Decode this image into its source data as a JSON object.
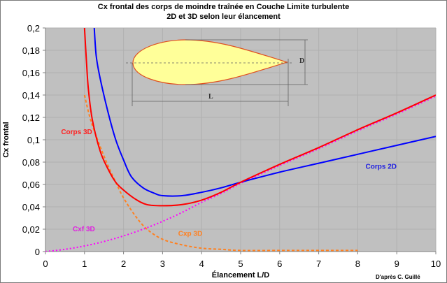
{
  "chart_data": {
    "type": "line",
    "title": "Cx frontal des corps de moindre traînée en Couche Limite turbulente",
    "subtitle": "2D et 3D selon leur élancement",
    "xlabel": "Élancement L/D",
    "ylabel": "Cx frontal",
    "xlim": [
      0,
      10
    ],
    "ylim": [
      0,
      0.2
    ],
    "x_ticks": [
      "0",
      "1",
      "2",
      "3",
      "4",
      "5",
      "6",
      "7",
      "8",
      "9",
      "10"
    ],
    "y_ticks": [
      "0",
      "0,02",
      "0,04",
      "0,06",
      "0,08",
      "0,1",
      "0,12",
      "0,14",
      "0,16",
      "0,18",
      "0,2"
    ],
    "grid": true,
    "plot_background": "#c0c0c0",
    "credit": "D'après C. Guillé",
    "inset_diagram": {
      "shape": "teardrop body profile",
      "length_label": "L",
      "diameter_label": "D",
      "fill": "#ffff99",
      "outline": "#e05020"
    },
    "series": [
      {
        "name": "Corps 3D",
        "color": "#ff0000",
        "style": "solid",
        "x": [
          1.0,
          1.05,
          1.1,
          1.2,
          1.4,
          1.6,
          1.8,
          2.0,
          2.3,
          2.6,
          3.0,
          3.5,
          4.0,
          4.5,
          5.0,
          6.0,
          7.0,
          8.0,
          9.0,
          10.0
        ],
        "y": [
          0.2,
          0.17,
          0.145,
          0.118,
          0.09,
          0.074,
          0.062,
          0.055,
          0.047,
          0.042,
          0.041,
          0.042,
          0.046,
          0.053,
          0.062,
          0.078,
          0.093,
          0.109,
          0.124,
          0.14
        ]
      },
      {
        "name": "Corps 2D",
        "color": "#0000ff",
        "style": "solid",
        "x": [
          1.25,
          1.3,
          1.4,
          1.6,
          1.8,
          2.0,
          2.2,
          2.5,
          2.8,
          3.0,
          3.5,
          4.0,
          4.5,
          5.0,
          6.0,
          7.0,
          8.0,
          9.0,
          10.0
        ],
        "y": [
          0.2,
          0.175,
          0.155,
          0.125,
          0.1,
          0.082,
          0.067,
          0.057,
          0.052,
          0.05,
          0.05,
          0.053,
          0.057,
          0.062,
          0.071,
          0.079,
          0.087,
          0.095,
          0.103
        ]
      },
      {
        "name": "Cxf 3D",
        "color": "#ff00ff",
        "style": "dotted",
        "x": [
          0,
          0.5,
          1.0,
          1.5,
          2.0,
          2.5,
          3.0,
          3.5,
          4.0,
          4.5,
          5.0,
          6.0,
          7.0,
          8.0,
          9.0,
          10.0
        ],
        "y": [
          0.0,
          0.002,
          0.005,
          0.009,
          0.014,
          0.02,
          0.027,
          0.035,
          0.044,
          0.052,
          0.061,
          0.077,
          0.092,
          0.108,
          0.123,
          0.139
        ]
      },
      {
        "name": "Cxp 3D",
        "color": "#ff8020",
        "style": "dashed",
        "x": [
          1.0,
          1.1,
          1.2,
          1.4,
          1.6,
          1.8,
          2.0,
          2.3,
          2.6,
          3.0,
          3.5,
          4.0,
          4.5,
          5.0,
          6.0,
          7.0,
          8.0
        ],
        "y": [
          0.14,
          0.125,
          0.113,
          0.094,
          0.077,
          0.062,
          0.048,
          0.032,
          0.02,
          0.011,
          0.006,
          0.003,
          0.002,
          0.001,
          0.001,
          0.001,
          0.001
        ]
      }
    ],
    "annotations": [
      {
        "text": "Corps 3D",
        "x": 0.4,
        "y": 0.105,
        "color": "#ff2020"
      },
      {
        "text": "Corps 2D",
        "x": 8.2,
        "y": 0.074,
        "color": "#2020e0"
      },
      {
        "text": "Cxf 3D",
        "x": 0.7,
        "y": 0.018,
        "color": "#e020e0"
      },
      {
        "text": "Cxp 3D",
        "x": 3.4,
        "y": 0.014,
        "color": "#ff8020"
      }
    ]
  }
}
